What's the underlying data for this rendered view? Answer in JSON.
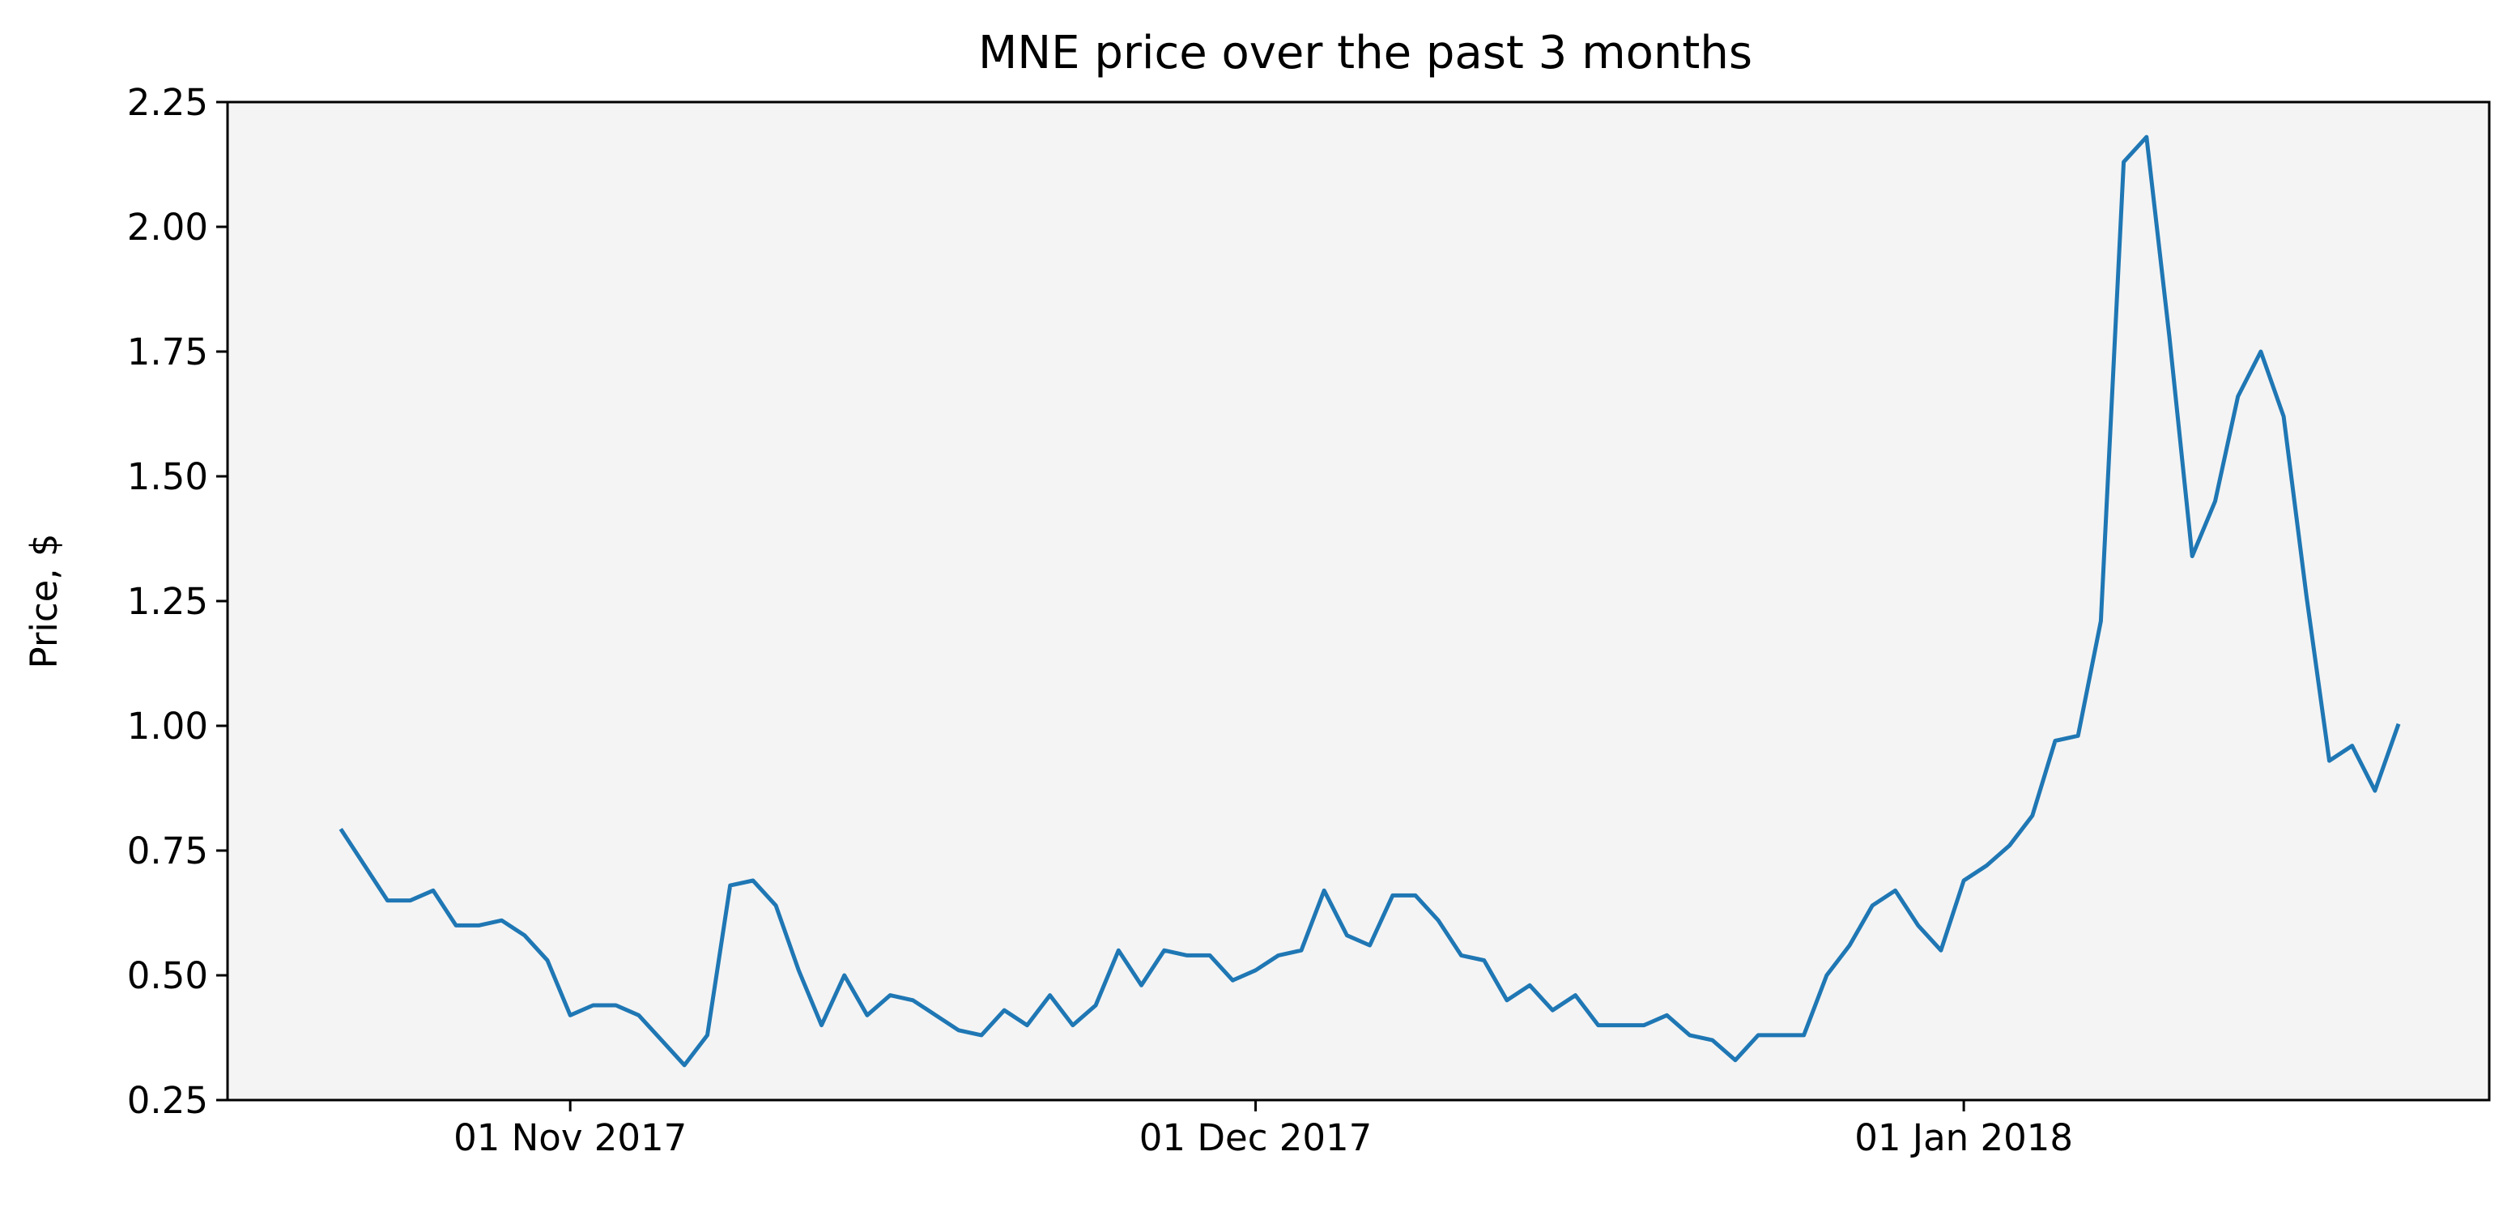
{
  "chart_data": {
    "type": "line",
    "title": "MNE price over the past 3 months",
    "xlabel": "",
    "ylabel": "Price, $",
    "ylim": [
      0.25,
      2.25
    ],
    "xlim": [
      "2017-10-17",
      "2018-01-24"
    ],
    "yticks": [
      "0.25",
      "0.50",
      "0.75",
      "1.00",
      "1.25",
      "1.50",
      "1.75",
      "2.00",
      "2.25"
    ],
    "xticks": [
      {
        "date": "2017-11-01",
        "label": "01 Nov 2017"
      },
      {
        "date": "2017-12-01",
        "label": "01 Dec 2017"
      },
      {
        "date": "2018-01-01",
        "label": "01 Jan 2018"
      }
    ],
    "grid": false,
    "colors": {
      "line": "#1f77b4",
      "plot_background": "#f4f4f4"
    },
    "series": [
      {
        "x": [
          "2017-10-22",
          "2017-10-23",
          "2017-10-24",
          "2017-10-25",
          "2017-10-26",
          "2017-10-27",
          "2017-10-28",
          "2017-10-29",
          "2017-10-30",
          "2017-10-31",
          "2017-11-01",
          "2017-11-02",
          "2017-11-03",
          "2017-11-04",
          "2017-11-05",
          "2017-11-06",
          "2017-11-07",
          "2017-11-08",
          "2017-11-09",
          "2017-11-10",
          "2017-11-11",
          "2017-11-12",
          "2017-11-13",
          "2017-11-14",
          "2017-11-15",
          "2017-11-16",
          "2017-11-17",
          "2017-11-18",
          "2017-11-19",
          "2017-11-20",
          "2017-11-21",
          "2017-11-22",
          "2017-11-23",
          "2017-11-24",
          "2017-11-25",
          "2017-11-26",
          "2017-11-27",
          "2017-11-28",
          "2017-11-29",
          "2017-11-30",
          "2017-12-01",
          "2017-12-02",
          "2017-12-03",
          "2017-12-04",
          "2017-12-05",
          "2017-12-06",
          "2017-12-07",
          "2017-12-08",
          "2017-12-09",
          "2017-12-10",
          "2017-12-11",
          "2017-12-12",
          "2017-12-13",
          "2017-12-14",
          "2017-12-15",
          "2017-12-16",
          "2017-12-17",
          "2017-12-18",
          "2017-12-19",
          "2017-12-20",
          "2017-12-21",
          "2017-12-22",
          "2017-12-23",
          "2017-12-24",
          "2017-12-25",
          "2017-12-26",
          "2017-12-27",
          "2017-12-28",
          "2017-12-29",
          "2017-12-30",
          "2017-12-31",
          "2018-01-01",
          "2018-01-02",
          "2018-01-03",
          "2018-01-04",
          "2018-01-05",
          "2018-01-06",
          "2018-01-07",
          "2018-01-08",
          "2018-01-09",
          "2018-01-10",
          "2018-01-11",
          "2018-01-12",
          "2018-01-13",
          "2018-01-14",
          "2018-01-15",
          "2018-01-16",
          "2018-01-17",
          "2018-01-18",
          "2018-01-19",
          "2018-01-20"
        ],
        "values": [
          0.79,
          0.72,
          0.65,
          0.65,
          0.67,
          0.6,
          0.6,
          0.61,
          0.58,
          0.53,
          0.42,
          0.44,
          0.44,
          0.42,
          0.37,
          0.32,
          0.38,
          0.68,
          0.69,
          0.64,
          0.51,
          0.4,
          0.5,
          0.42,
          0.46,
          0.45,
          0.42,
          0.39,
          0.38,
          0.43,
          0.4,
          0.46,
          0.4,
          0.44,
          0.55,
          0.48,
          0.55,
          0.54,
          0.54,
          0.49,
          0.51,
          0.54,
          0.55,
          0.67,
          0.58,
          0.56,
          0.66,
          0.66,
          0.61,
          0.54,
          0.53,
          0.45,
          0.48,
          0.43,
          0.46,
          0.4,
          0.4,
          0.4,
          0.42,
          0.38,
          0.37,
          0.33,
          0.38,
          0.38,
          0.38,
          0.5,
          0.56,
          0.64,
          0.67,
          0.6,
          0.55,
          0.69,
          0.72,
          0.76,
          0.82,
          0.97,
          0.98,
          1.21,
          2.13,
          2.18,
          1.78,
          1.34,
          1.45,
          1.66,
          1.75,
          1.62,
          1.26,
          0.93,
          0.96,
          0.87,
          1.0
        ]
      }
    ]
  }
}
